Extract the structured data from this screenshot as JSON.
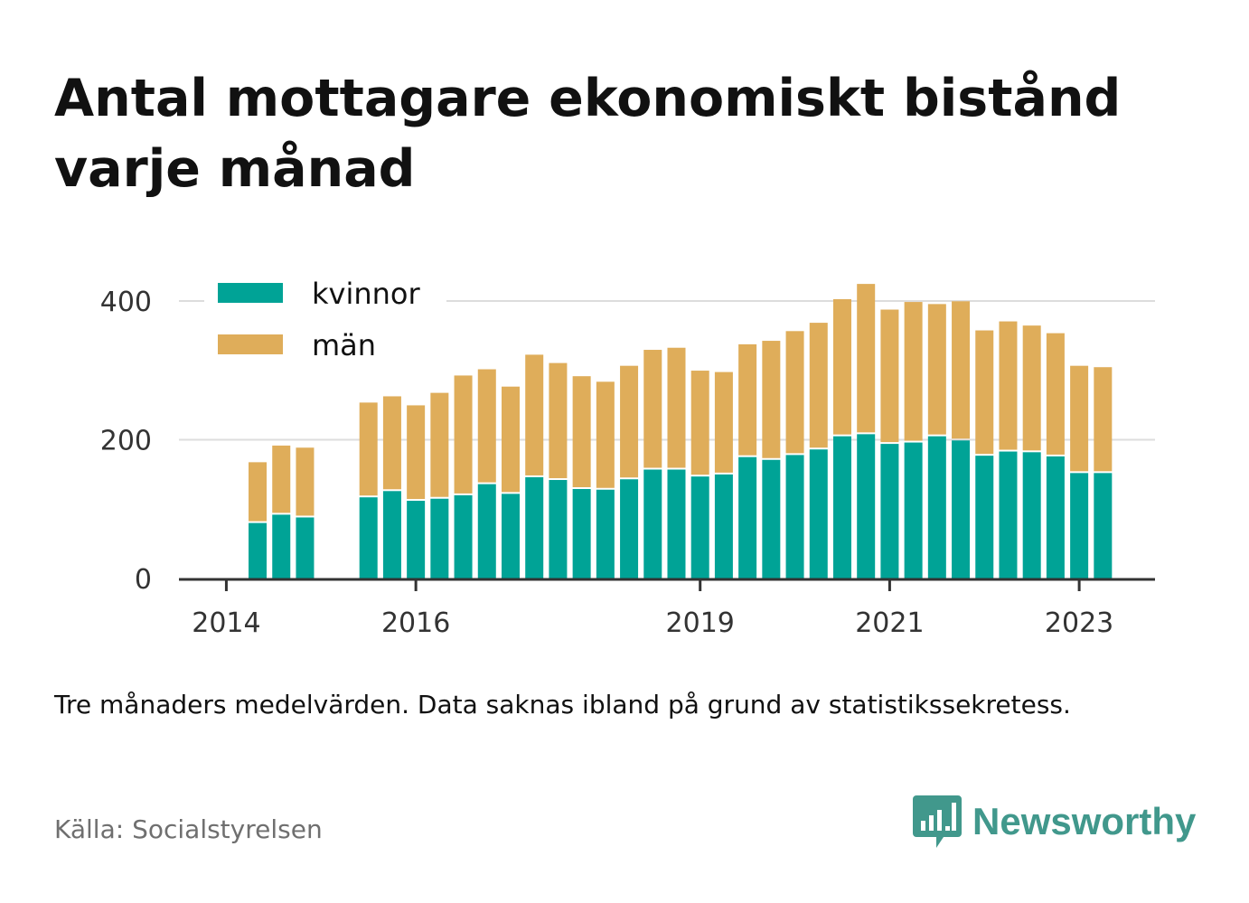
{
  "title": "Antal mottagare ekonomiskt bistånd varje månad",
  "subtitle": "Tre månaders medelvärden. Data saknas ibland på grund av statistikssekretess.",
  "source": "Källa: Socialstyrelsen",
  "brand": {
    "name": "Newsworthy",
    "color": "#41988c",
    "icon": "newsworthy-logo-icon"
  },
  "chart_data": {
    "type": "bar",
    "stacked": true,
    "x_axis": {
      "min": 2013.5,
      "max": 2023.8,
      "ticks": [
        2014,
        2016,
        2019,
        2021,
        2023
      ]
    },
    "y_axis": {
      "min": 0,
      "max": 450,
      "ticks": [
        0,
        200,
        400
      ]
    },
    "grid": true,
    "legend": "top-left",
    "x": [
      2014.33,
      2014.58,
      2014.83,
      2015.5,
      2015.75,
      2016.0,
      2016.25,
      2016.5,
      2016.75,
      2017.0,
      2017.25,
      2017.5,
      2017.75,
      2018.0,
      2018.25,
      2018.5,
      2018.75,
      2019.0,
      2019.25,
      2019.5,
      2019.75,
      2020.0,
      2020.25,
      2020.5,
      2020.75,
      2021.0,
      2021.25,
      2021.5,
      2021.75,
      2022.0,
      2022.25,
      2022.5,
      2022.75,
      2023.0,
      2023.25
    ],
    "series": [
      {
        "name": "kvinnor",
        "color": "#00a396",
        "values": [
          80,
          92,
          88,
          117,
          126,
          112,
          115,
          120,
          136,
          122,
          146,
          142,
          129,
          128,
          143,
          157,
          157,
          147,
          150,
          175,
          171,
          178,
          186,
          205,
          208,
          194,
          196,
          205,
          199,
          177,
          183,
          182,
          176,
          152,
          152
        ]
      },
      {
        "name": "män",
        "color": "#dfad5a",
        "values": [
          85,
          97,
          98,
          134,
          134,
          135,
          150,
          170,
          163,
          152,
          174,
          166,
          160,
          153,
          161,
          170,
          173,
          150,
          145,
          160,
          169,
          176,
          180,
          195,
          214,
          191,
          200,
          188,
          198,
          178,
          185,
          180,
          175,
          152,
          150
        ]
      }
    ]
  }
}
